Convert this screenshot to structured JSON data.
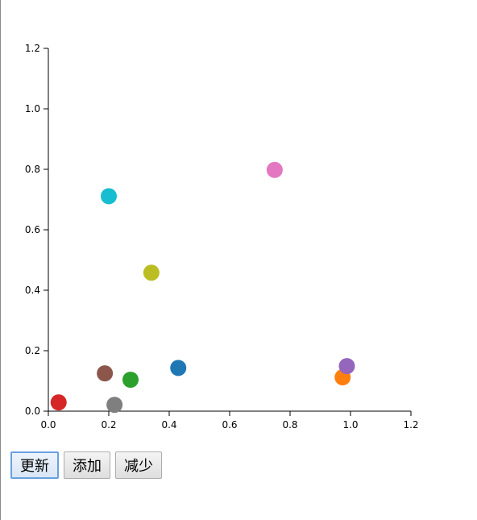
{
  "chart_data": {
    "type": "scatter",
    "title": "",
    "xlabel": "",
    "ylabel": "",
    "xlim": [
      0,
      1.2
    ],
    "ylim": [
      0,
      1.2
    ],
    "x_ticks": [
      "0.0",
      "0.2",
      "0.4",
      "0.6",
      "0.8",
      "1.0",
      "1.2"
    ],
    "y_ticks": [
      "0.0",
      "0.2",
      "0.4",
      "0.6",
      "0.8",
      "1.0",
      "1.2"
    ],
    "grid": false,
    "points": [
      {
        "x": 0.43,
        "y": 0.143,
        "color": "#1f77b4"
      },
      {
        "x": 0.974,
        "y": 0.112,
        "color": "#ff7f0e"
      },
      {
        "x": 0.272,
        "y": 0.104,
        "color": "#2ca02c"
      },
      {
        "x": 0.034,
        "y": 0.029,
        "color": "#d62728"
      },
      {
        "x": 0.988,
        "y": 0.149,
        "color": "#9467bd"
      },
      {
        "x": 0.187,
        "y": 0.125,
        "color": "#8c564b"
      },
      {
        "x": 0.749,
        "y": 0.798,
        "color": "#e377c2"
      },
      {
        "x": 0.219,
        "y": 0.021,
        "color": "#7f7f7f"
      },
      {
        "x": 0.341,
        "y": 0.458,
        "color": "#bcbd22"
      },
      {
        "x": 0.2,
        "y": 0.711,
        "color": "#17becf"
      }
    ]
  },
  "buttons": {
    "update_label": "更新",
    "add_label": "添加",
    "remove_label": "减少"
  }
}
